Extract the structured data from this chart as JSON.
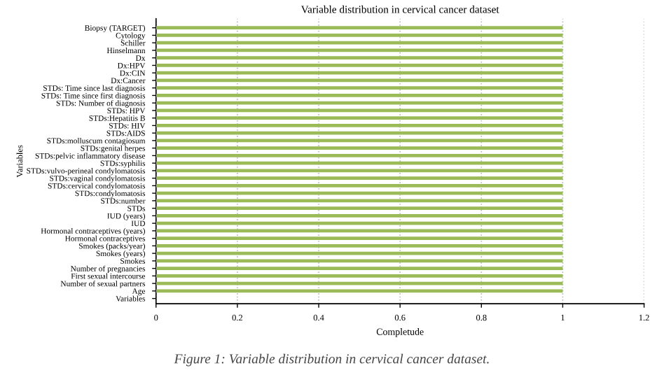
{
  "chart_data": {
    "type": "bar",
    "orientation": "horizontal",
    "title": "Variable distribution in cervical cancer dataset",
    "xlabel": "Completude",
    "ylabel": "Variables",
    "categories": [
      "Biopsy (TARGET)",
      "Cytology",
      "Schiller",
      "Hinselmann",
      "Dx",
      "Dx:HPV",
      "Dx:CIN",
      "Dx:Cancer",
      "STDs: Time since last diagnosis",
      "STDs: Time since first diagnosis",
      "STDs: Number of diagnosis",
      "STDs: HPV",
      "STDs:Hepatitis B",
      "STDs: HIV",
      "STDs:AIDS",
      "STDs:molluscum contagiosum",
      "STDs:genital herpes",
      "STDs:pelvic inflammatory disease",
      "STDs:syphilis",
      "STDs:vulvo-perineal condylomatosis",
      "STDs:vaginal condylomatosis",
      "STDs:cervical condylomatosis",
      "STDs:condylomatosis",
      "STDs:number",
      "STDs",
      "IUD (years)",
      "IUD",
      "Hormonal contraceptives (years)",
      "Hormonal contraceptives",
      "Smokes (packs/year)",
      "Smokes (years)",
      "Smokes",
      "Number of pregnancies",
      "First sexual intercourse",
      "Number of sexual partners",
      "Age",
      "Variables"
    ],
    "values": [
      1,
      1,
      1,
      1,
      1,
      1,
      1,
      1,
      1,
      1,
      1,
      1,
      1,
      1,
      1,
      1,
      1,
      1,
      1,
      1,
      1,
      1,
      1,
      1,
      1,
      1,
      1,
      1,
      1,
      1,
      1,
      1,
      1,
      1,
      1,
      1,
      null
    ],
    "color": "#9bbb59",
    "xlim": [
      0,
      1.2
    ],
    "xticks": [
      0,
      0.2,
      0.4,
      0.6,
      0.8,
      1,
      1.2
    ],
    "grid": "x",
    "annotations": [
      "Figure 1: Variable distribution in cervical cancer dataset."
    ]
  }
}
